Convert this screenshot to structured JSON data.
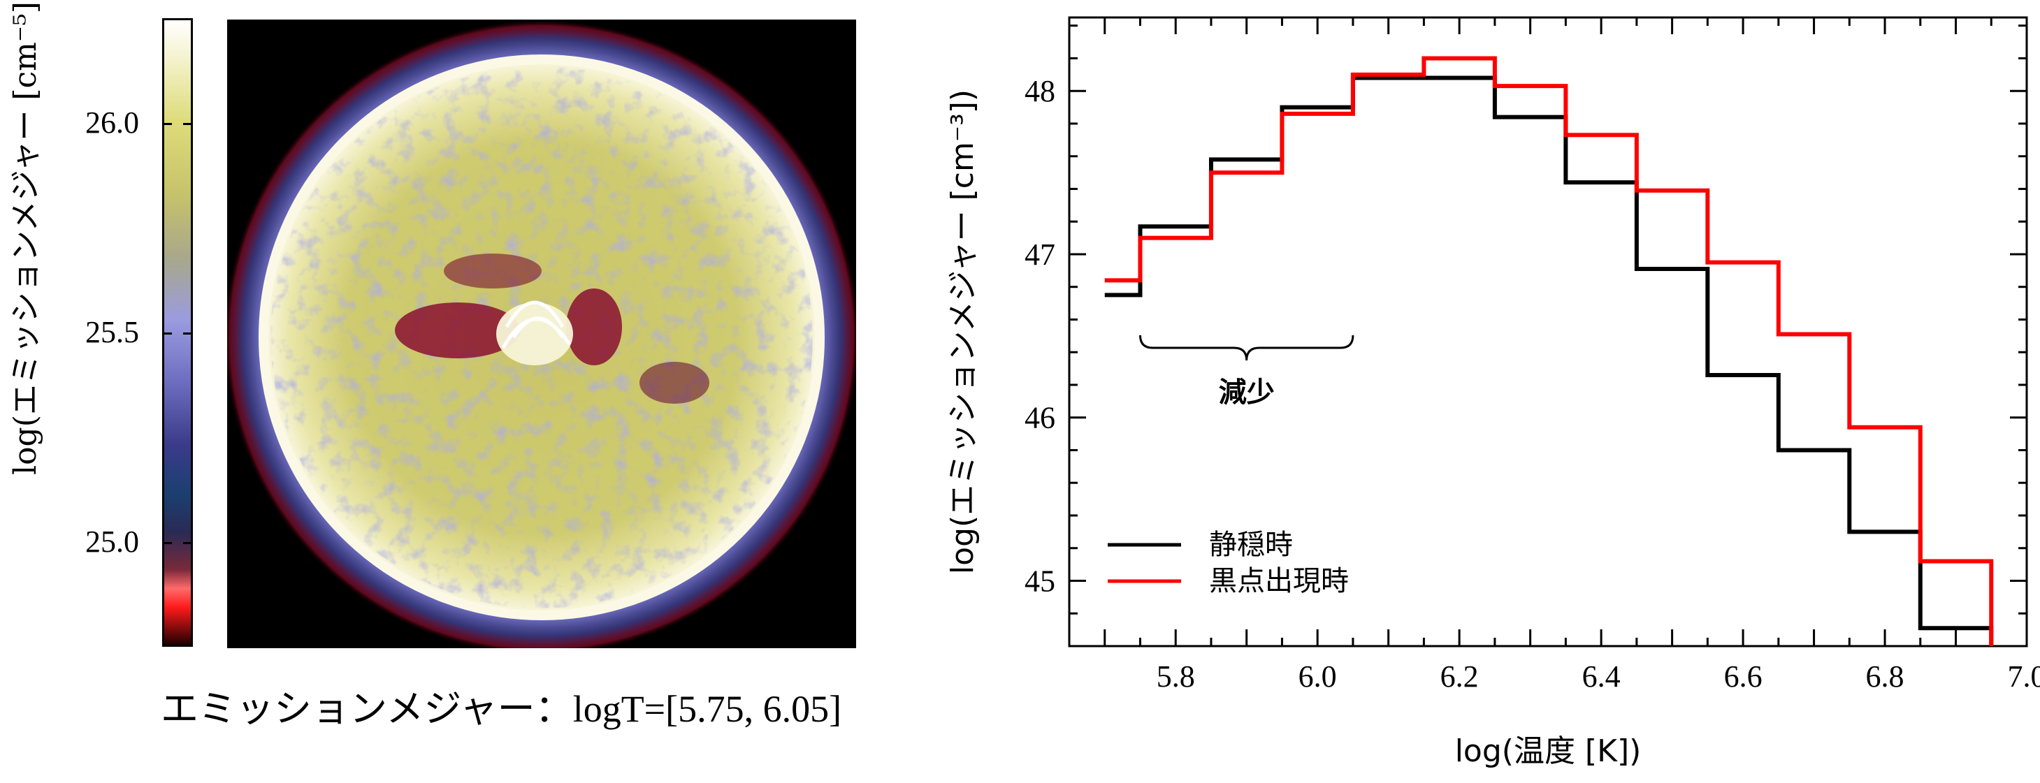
{
  "left_panel": {
    "colorbar_label": "log(エミッションメジャー [cm⁻⁵])",
    "colorbar_ticks": [
      "26.0",
      "25.5",
      "25.0"
    ],
    "colorbar_tick_values": [
      26.0,
      25.5,
      25.0
    ],
    "colorbar_range": [
      24.75,
      26.25
    ],
    "caption_jp": "エミッションメジャー：",
    "caption_range": "logT=[5.75, 6.05]",
    "colors": {
      "bg": "#000000",
      "limb": "#f4f1d2",
      "disk": "#c9c567",
      "coolspot": "#6f6fc0",
      "hot": "#c2103a"
    }
  },
  "chart_data": {
    "type": "line",
    "step": true,
    "xlabel": "log(温度 [K])",
    "ylabel": "log(エミッションメジャー [cm⁻³])",
    "xlim": [
      5.65,
      7.0
    ],
    "ylim": [
      44.6,
      48.45
    ],
    "xticks": [
      5.8,
      6.0,
      6.2,
      6.4,
      6.6,
      6.8,
      7.0
    ],
    "yticks": [
      45,
      46,
      47,
      48
    ],
    "bin_edges": [
      5.7,
      5.75,
      5.85,
      5.95,
      6.05,
      6.15,
      6.25,
      6.35,
      6.45,
      6.55,
      6.65,
      6.75,
      6.85,
      6.95
    ],
    "series": [
      {
        "name": "静穏時",
        "color": "#000000",
        "values": [
          46.75,
          47.17,
          47.58,
          47.9,
          48.08,
          48.08,
          47.84,
          47.44,
          46.91,
          46.26,
          45.8,
          45.3,
          44.71
        ]
      },
      {
        "name": "黒点出現時",
        "color": "#ff0000",
        "values": [
          46.84,
          47.1,
          47.5,
          47.86,
          48.1,
          48.2,
          48.03,
          47.73,
          47.39,
          46.95,
          46.51,
          45.94,
          45.12
        ]
      }
    ],
    "annotation": {
      "text": "減少",
      "x_from": 5.75,
      "x_to": 6.05
    },
    "legend_placement": "lower-left"
  }
}
